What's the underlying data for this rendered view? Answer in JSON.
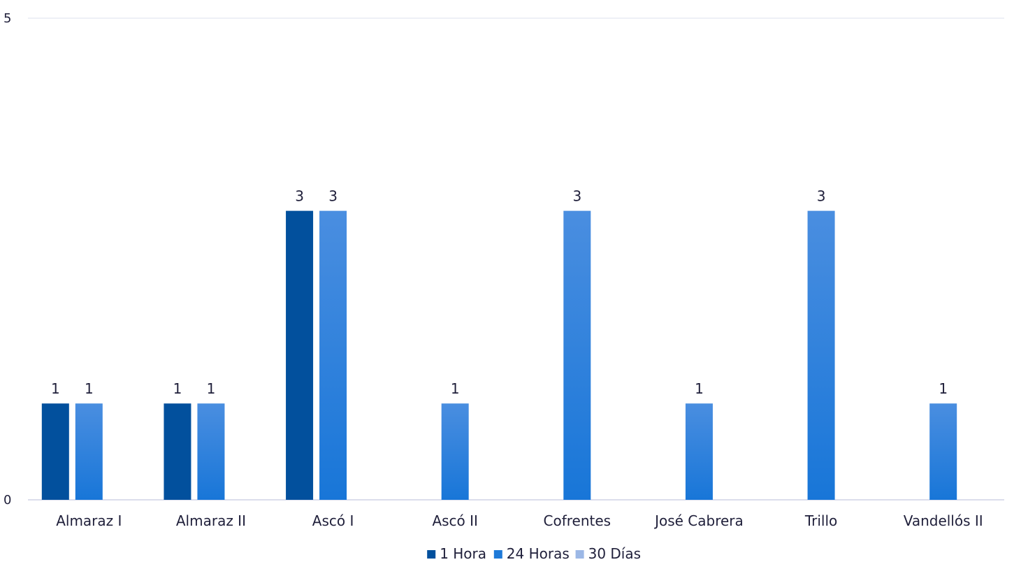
{
  "chart_data": {
    "type": "bar",
    "title": "",
    "xlabel": "",
    "ylabel": "",
    "ylim": [
      0,
      5
    ],
    "yticks": [
      0,
      5
    ],
    "grid": true,
    "legend_position": "bottom",
    "categories": [
      "Almaraz I",
      "Almaraz II",
      "Ascó I",
      "Ascó II",
      "Cofrentes",
      "José Cabrera",
      "Trillo",
      "Vandellós II"
    ],
    "series": [
      {
        "name": "1 Hora",
        "color": "#02509d",
        "values": [
          1,
          1,
          3,
          null,
          null,
          null,
          null,
          null
        ]
      },
      {
        "name": "24 Horas",
        "color": "#1e7ad8",
        "color_top": "#4a8ee0",
        "values": [
          1,
          1,
          3,
          1,
          3,
          1,
          3,
          1
        ]
      },
      {
        "name": "30 Días",
        "color": "#9cb8e6",
        "values": [
          null,
          null,
          null,
          null,
          null,
          null,
          null,
          null
        ]
      }
    ]
  }
}
